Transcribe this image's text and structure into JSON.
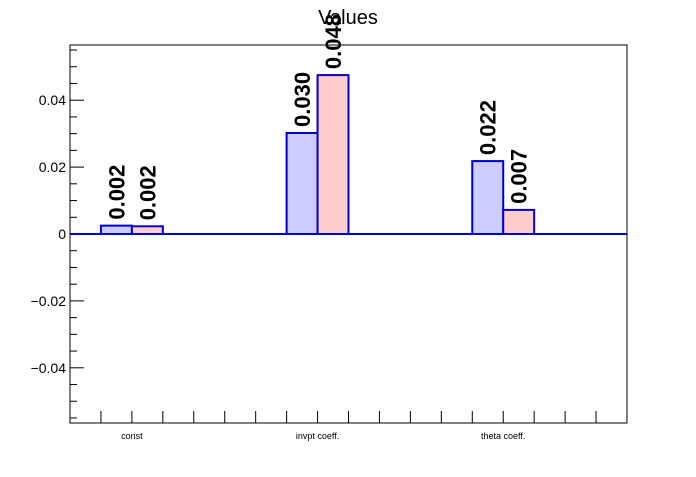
{
  "chart_data": {
    "type": "bar",
    "title": "Values",
    "xlabel": "",
    "ylabel": "",
    "categories": [
      "const",
      "invpt coeff.",
      "theta coeff."
    ],
    "series": [
      {
        "values": [
          0.0025,
          0.0302,
          0.0218
        ],
        "labels": [
          "0.002",
          "0.030",
          "0.022"
        ],
        "fill": "#ccccff",
        "stroke": "#0000cc"
      },
      {
        "values": [
          0.0023,
          0.0475,
          0.0072
        ],
        "labels": [
          "0.002",
          "0.048",
          "0.007"
        ],
        "fill": "#ffcccc",
        "stroke": "#0000cc"
      }
    ],
    "ylim": [
      -0.0565,
      0.0565
    ],
    "yticks": [
      -0.04,
      -0.02,
      0,
      0.02,
      0.04
    ],
    "ytick_labels": [
      "−0.04",
      "−0.02",
      "0",
      "0.02",
      "0.04"
    ],
    "grid": false,
    "legend": "none",
    "baseline_color": "#0000cc"
  }
}
